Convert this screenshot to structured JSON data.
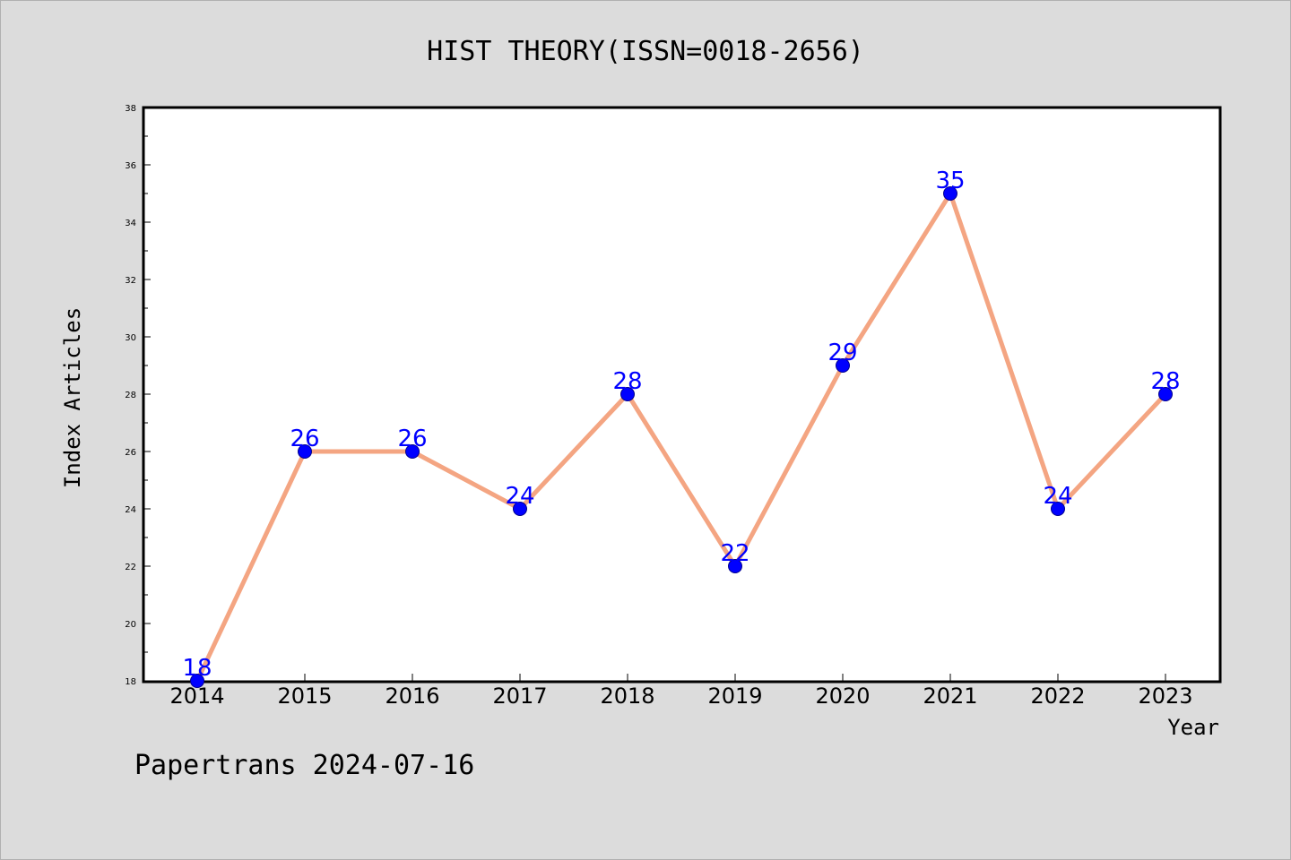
{
  "chart_data": {
    "type": "line",
    "title": "HIST THEORY(ISSN=0018-2656)",
    "xlabel": "Year",
    "ylabel": "Index Articles",
    "categories": [
      "2014",
      "2015",
      "2016",
      "2017",
      "2018",
      "2019",
      "2020",
      "2021",
      "2022",
      "2023"
    ],
    "series": [
      {
        "values": [
          18,
          26,
          26,
          24,
          28,
          22,
          29,
          35,
          24,
          28
        ]
      }
    ],
    "data_labels": [
      "18",
      "26",
      "26",
      "24",
      "28",
      "22",
      "29",
      "35",
      "24",
      "28"
    ],
    "ylim": [
      18,
      38
    ],
    "yticks": [
      "18",
      "20",
      "22",
      "24",
      "26",
      "28",
      "30",
      "32",
      "34",
      "36",
      "38"
    ],
    "grid": false,
    "legend": "none",
    "colors": {
      "line": "#f4a582",
      "marker": "#0000ff",
      "data_label": "#0000ff",
      "background": "#dcdcdc",
      "plot_area": "#ffffff"
    }
  },
  "footer": {
    "text": "Papertrans 2024-07-16"
  }
}
